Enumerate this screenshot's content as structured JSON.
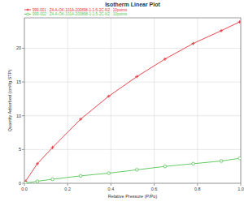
{
  "chart_data": {
    "type": "line",
    "title": "Isotherm Linear Plot",
    "x_label": "Relative Pressure (P/Po)",
    "y_label": "Quantity Adsorbed (cm³/g STP)",
    "x": [
      0.005,
      0.06,
      0.13,
      0.26,
      0.39,
      0.52,
      0.65,
      0.78,
      0.91,
      0.995
    ],
    "series": [
      {
        "name": "999-001 : Z4-A-OK-101A-200898-1-1-5-2C-N2 : 10points",
        "color": "#e8313a",
        "marker": "plus",
        "values": [
          0.3,
          2.9,
          5.3,
          9.5,
          12.9,
          15.8,
          18.4,
          20.7,
          22.6,
          23.9
        ]
      },
      {
        "name": "999-002 : Z4-A-OK-101A-200898-1-1-5-2C-N2 : 10points",
        "color": "#55c455",
        "marker": "circle",
        "values": [
          0.05,
          0.3,
          0.6,
          1.1,
          1.5,
          2.0,
          2.5,
          2.9,
          3.3,
          3.7
        ]
      }
    ],
    "xlim": [
      0,
      1
    ],
    "xticks": [
      {
        "value": 0,
        "label": "0.0"
      },
      0.2,
      0.4,
      0.6,
      0.8,
      {
        "value": 1,
        "label": "1.0"
      }
    ],
    "ylim": [
      0,
      24.5
    ],
    "yticks": [
      0,
      5,
      10,
      15,
      20
    ],
    "grid": true,
    "legend": "top-left"
  }
}
